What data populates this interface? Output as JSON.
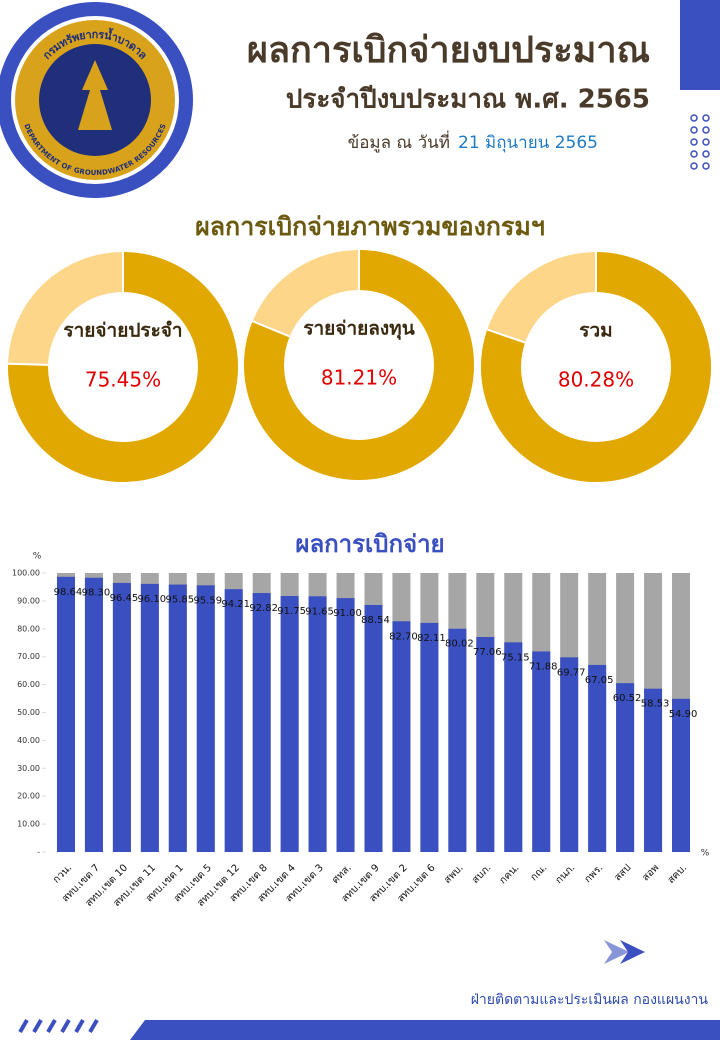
{
  "logo": {
    "text_th": "กรมทรัพยากรน้ำบาดาล",
    "text_en": "DEPARTMENT OF GROUNDWATER RESOURCES"
  },
  "header": {
    "title": "ผลการเบิกจ่ายงบประมาณ",
    "subtitle": "ประจำปีงบประมาณ พ.ศ. 2565",
    "date_prefix": "ข้อมูล ณ วันที่",
    "date": "21 มิถุนายน 2565"
  },
  "footer": "ฝ่ายติดตามและประเมินผล  กองแผนงาน",
  "chart_data": [
    {
      "type": "donut",
      "title": "ผลการเบิกจ่ายภาพรวมของกรมฯ",
      "color": "#e0a800",
      "remainder_color": "#fdd68a",
      "categories": [
        "รายจ่ายประจำ",
        "รายจ่ายลงทุน",
        "รวม"
      ],
      "values": [
        75.45,
        81.21,
        80.28
      ],
      "value_labels": [
        "75.45%",
        "81.21%",
        "80.28%"
      ]
    },
    {
      "type": "stacked_bar",
      "title": "ผลการเบิกจ่าย",
      "ylabel": "%",
      "xlabel": "%",
      "color": "#3a4fc0",
      "remainder_color": "#a6a6a6",
      "categories": [
        "กวน.",
        "สทบ.เขต 7",
        "สทบ.เขต 10",
        "สทบ.เขต 11",
        "สทบ.เขต 1",
        "สทบ.เขต 5",
        "สทบ.เขต 12",
        "สทบ.เขต 8",
        "สทบ.เขต 4",
        "สทบ.เขต 3",
        "ศทส.",
        "สทบ.เขต 9",
        "สทบ.เขต 2",
        "สทบ.เขต 6",
        "สพบ.",
        "สบภ.",
        "กคน.",
        "กณ.",
        "กนภ.",
        "กพร.",
        "สสป",
        "สอพ",
        "สคบ."
      ],
      "values": [
        98.64,
        98.3,
        96.45,
        96.1,
        95.85,
        95.59,
        94.21,
        92.82,
        91.75,
        91.65,
        91.0,
        88.54,
        82.7,
        82.11,
        80.02,
        77.06,
        75.15,
        71.88,
        69.77,
        67.05,
        60.52,
        58.53,
        54.9
      ],
      "value_labels": [
        "98.64",
        "98.30",
        "96.45",
        "96.10",
        "95.85",
        "95.59",
        "94.21",
        "92.82",
        "91.75",
        "91.65",
        "91.00",
        "88.54",
        "82.70",
        "82.11",
        "80.02",
        "77.06",
        "75.15",
        "71.88",
        "69.77",
        "67.05",
        "60.52",
        "58.53",
        "54.90"
      ],
      "ylim": [
        0,
        100
      ],
      "yticks": [
        {
          "value": 100,
          "label": "100.00"
        },
        {
          "value": 90,
          "label": "90.00"
        },
        {
          "value": 80,
          "label": "80.00"
        },
        {
          "value": 70,
          "label": "70.00"
        },
        {
          "value": 60,
          "label": "60.00"
        },
        {
          "value": 50,
          "label": "50.00"
        },
        {
          "value": 40,
          "label": "40.00"
        },
        {
          "value": 30,
          "label": "30.00"
        },
        {
          "value": 20,
          "label": "20.00"
        },
        {
          "value": 10,
          "label": "10.00"
        },
        {
          "value": 0,
          "label": "-"
        }
      ]
    }
  ]
}
